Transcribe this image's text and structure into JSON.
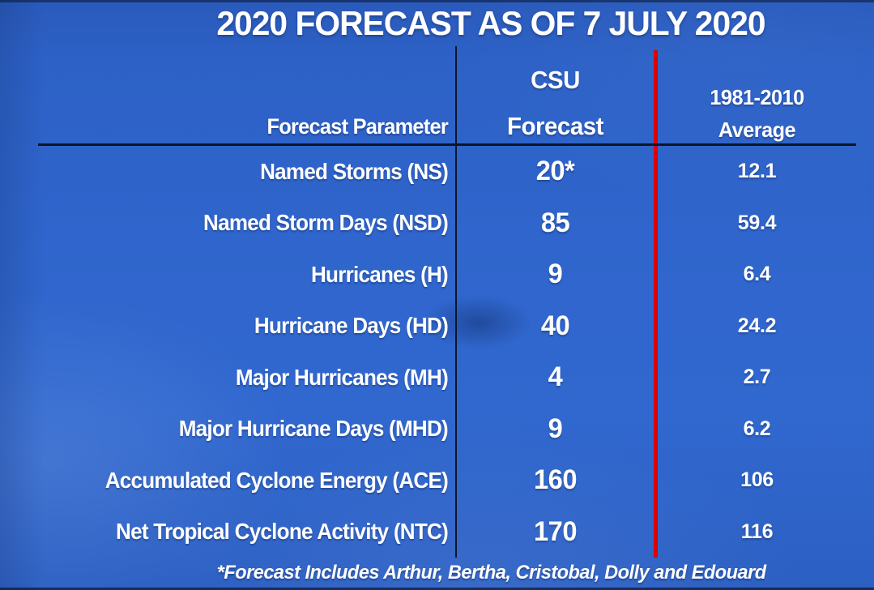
{
  "chart_data": {
    "type": "table",
    "title": "2020 FORECAST AS OF 7 JULY 2020",
    "columns": [
      "Forecast Parameter",
      "CSU Forecast",
      "1981-2010 Average"
    ],
    "rows": [
      [
        "Named Storms (NS)",
        "20*",
        "12.1"
      ],
      [
        "Named Storm Days (NSD)",
        "85",
        "59.4"
      ],
      [
        "Hurricanes (H)",
        "9",
        "6.4"
      ],
      [
        "Hurricane Days (HD)",
        "40",
        "24.2"
      ],
      [
        "Major Hurricanes (MH)",
        "4",
        "2.7"
      ],
      [
        "Major Hurricane Days (MHD)",
        "9",
        "6.2"
      ],
      [
        "Accumulated Cyclone Energy (ACE)",
        "160",
        "106"
      ],
      [
        "Net Tropical Cyclone Activity (NTC)",
        "170",
        "116"
      ]
    ],
    "footnote": "*Forecast Includes Arthur, Bertha, Cristobal, Dolly and Edouard",
    "legend_position": "none",
    "grid": "off"
  },
  "header": {
    "parameter": "Forecast Parameter",
    "csu_line1": "CSU",
    "csu_line2": "Forecast",
    "avg_line1": "1981-2010",
    "avg_line2": "Average"
  },
  "colors": {
    "background_blue": "#2e63c8",
    "divider_dark": "#0c1626",
    "divider_red": "#dd0000",
    "text": "#ffffff"
  }
}
